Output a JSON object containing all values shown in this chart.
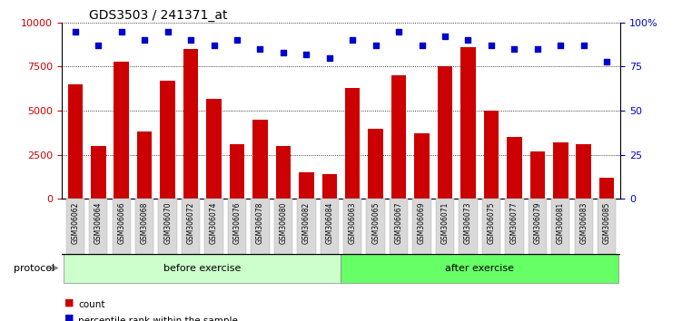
{
  "title": "GDS3503 / 241371_at",
  "categories": [
    "GSM306062",
    "GSM306064",
    "GSM306066",
    "GSM306068",
    "GSM306070",
    "GSM306072",
    "GSM306074",
    "GSM306076",
    "GSM306078",
    "GSM306080",
    "GSM306082",
    "GSM306084",
    "GSM306063",
    "GSM306065",
    "GSM306067",
    "GSM306069",
    "GSM306071",
    "GSM306073",
    "GSM306075",
    "GSM306077",
    "GSM306079",
    "GSM306081",
    "GSM306083",
    "GSM306085"
  ],
  "counts": [
    6500,
    3000,
    7800,
    3800,
    6700,
    8500,
    5700,
    3100,
    4500,
    3000,
    1500,
    1400,
    6300,
    4000,
    7000,
    3700,
    7500,
    8600,
    5000,
    3500,
    2700,
    3200,
    3100,
    1200
  ],
  "percentiles": [
    95,
    87,
    95,
    90,
    95,
    90,
    87,
    90,
    85,
    83,
    82,
    80,
    90,
    87,
    95,
    87,
    92,
    90,
    87,
    85,
    85,
    87,
    87,
    78
  ],
  "bar_color": "#cc0000",
  "dot_color": "#0000cc",
  "before_count": 12,
  "after_count": 12,
  "before_label": "before exercise",
  "after_label": "after exercise",
  "protocol_label": "protocol",
  "before_color": "#ccffcc",
  "after_color": "#66ff66",
  "xtick_bg_color": "#d8d8d8",
  "ylim_left": [
    0,
    10000
  ],
  "ylim_right": [
    0,
    100
  ],
  "yticks_left": [
    0,
    2500,
    5000,
    7500,
    10000
  ],
  "yticks_right": [
    0,
    25,
    50,
    75,
    100
  ],
  "ytick_right_labels": [
    "0",
    "25",
    "50",
    "75",
    "100%"
  ],
  "legend_count": "count",
  "legend_pct": "percentile rank within the sample",
  "title_fontsize": 10
}
